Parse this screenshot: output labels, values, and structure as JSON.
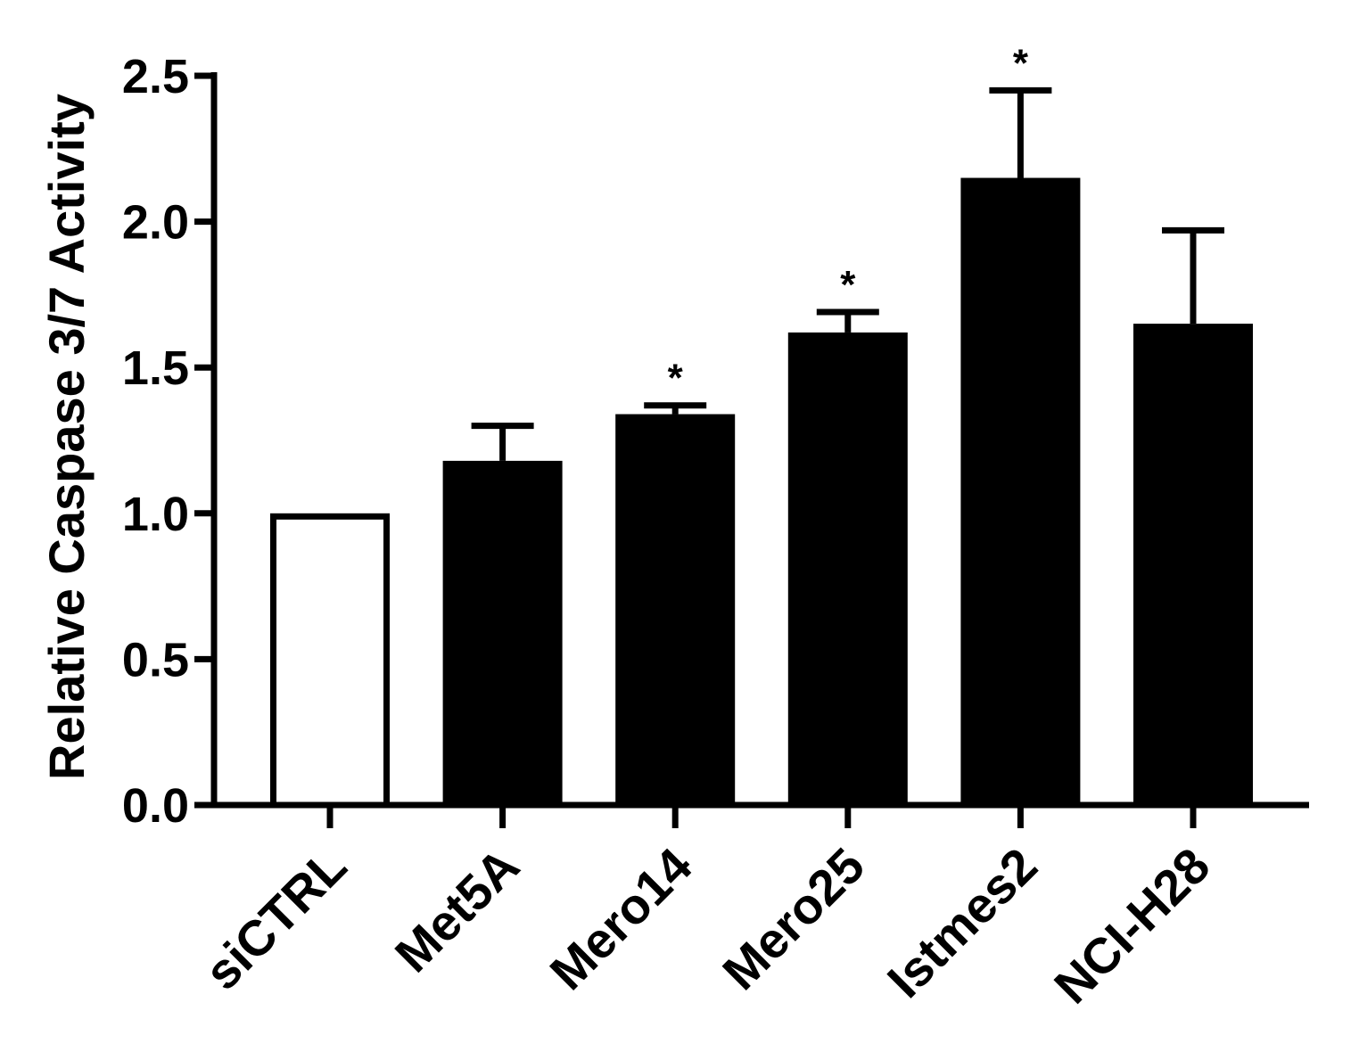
{
  "chart_data": {
    "type": "bar",
    "title": "",
    "xlabel": "",
    "ylabel": "Relative Caspase 3/7 Activity",
    "categories": [
      "siCTRL",
      "Met5A",
      "Mero14",
      "Mero25",
      "Istmes2",
      "NCI-H28"
    ],
    "values": [
      1.0,
      1.18,
      1.34,
      1.62,
      2.15,
      1.65
    ],
    "errors": [
      0.0,
      0.12,
      0.03,
      0.07,
      0.3,
      0.32
    ],
    "significance": [
      "",
      "",
      "*",
      "*",
      "*",
      ""
    ],
    "fills": [
      "#ffffff",
      "#000000",
      "#000000",
      "#000000",
      "#000000",
      "#000000"
    ],
    "ylim": [
      0,
      2.5
    ],
    "yticks": [
      "0.0",
      "0.5",
      "1.0",
      "1.5",
      "2.0",
      "2.5"
    ],
    "grid": false,
    "legend": "none"
  }
}
